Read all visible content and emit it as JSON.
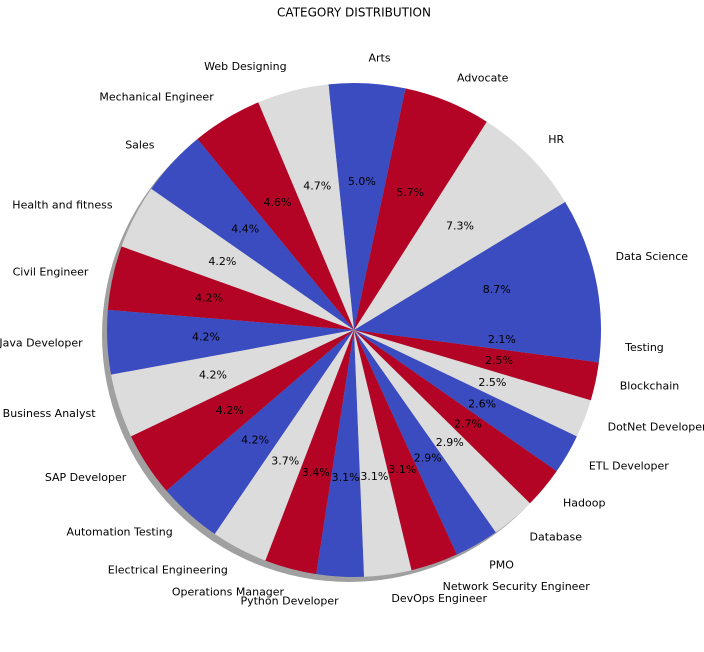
{
  "chart_data": {
    "type": "pie",
    "title": "CATEGORY DISTRIBUTION",
    "categories": [
      "Data Science",
      "HR",
      "Advocate",
      "Arts",
      "Web Designing",
      "Mechanical Engineer",
      "Sales",
      "Health and fitness",
      "Civil Engineer",
      "Java Developer",
      "Business Analyst",
      "SAP Developer",
      "Automation Testing",
      "Electrical Engineering",
      "Operations Manager",
      "Python Developer",
      "DevOps Engineer",
      "Network Security Engineer",
      "PMO",
      "Database",
      "Hadoop",
      "ETL Developer",
      "DotNet Developer",
      "Blockchain",
      "Testing"
    ],
    "values": [
      8.7,
      7.3,
      5.7,
      5.0,
      4.7,
      4.6,
      4.4,
      4.2,
      4.2,
      4.2,
      4.2,
      4.2,
      4.2,
      3.7,
      3.4,
      3.1,
      3.1,
      3.1,
      2.9,
      2.9,
      2.7,
      2.6,
      2.5,
      2.5,
      2.1
    ],
    "value_labels": [
      "8.7%",
      "7.3%",
      "5.7%",
      "5.0%",
      "4.7%",
      "4.6%",
      "4.4%",
      "4.2%",
      "4.2%",
      "4.2%",
      "4.2%",
      "4.2%",
      "4.2%",
      "3.7%",
      "3.4%",
      "3.1%",
      "3.1%",
      "3.1%",
      "2.9%",
      "2.9%",
      "2.7%",
      "2.6%",
      "2.5%",
      "2.5%",
      "2.1%"
    ],
    "colors": [
      "#3b4cc0",
      "#dddcdc",
      "#b40426"
    ],
    "shadow": true
  }
}
